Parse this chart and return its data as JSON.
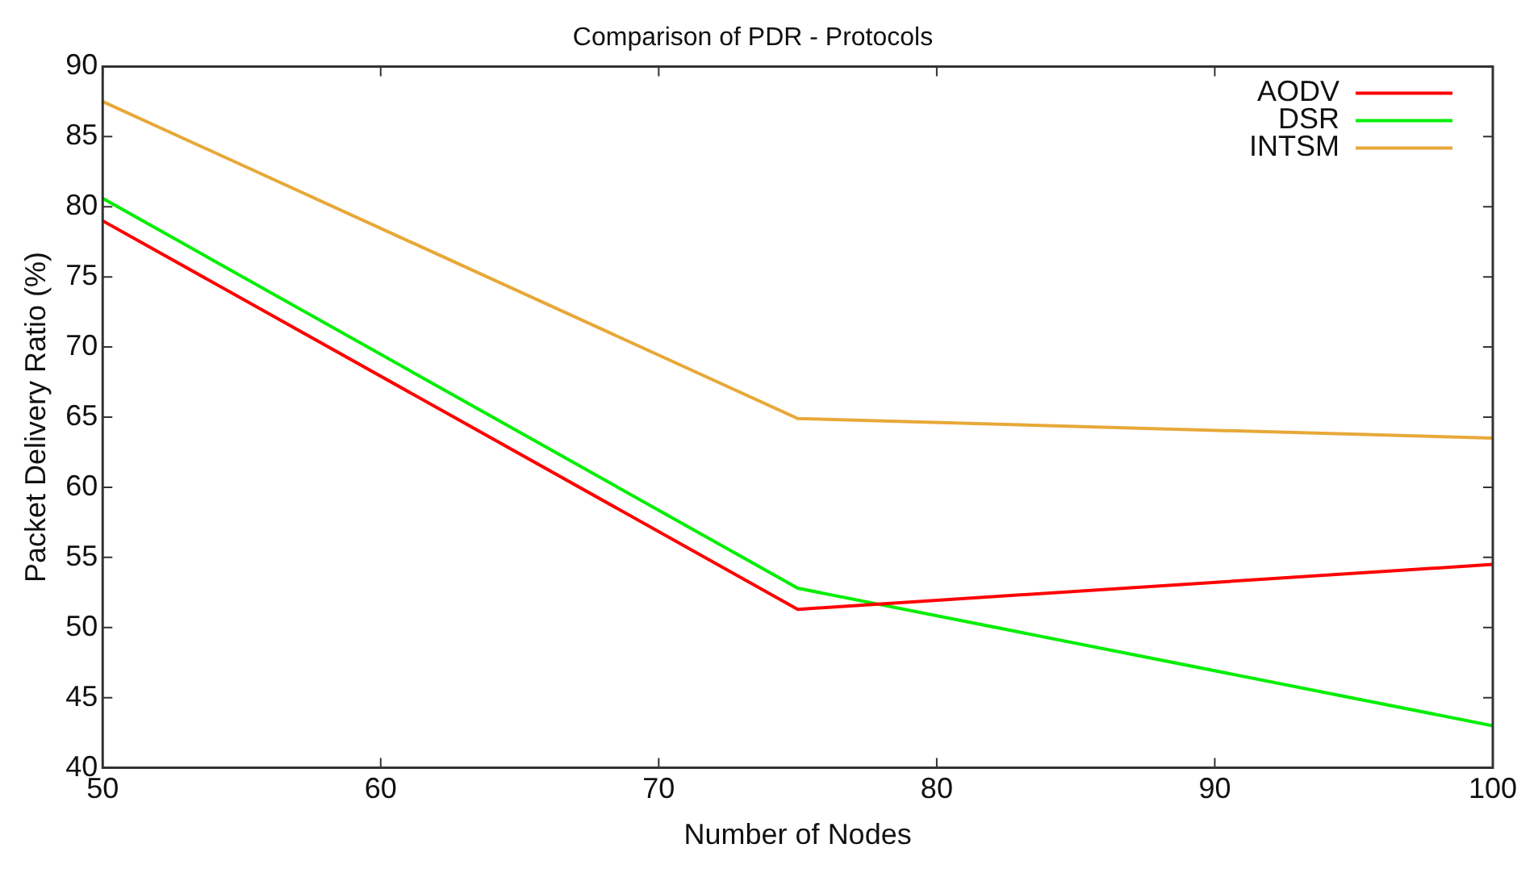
{
  "chart_data": {
    "type": "line",
    "title": "Comparison of PDR - Protocols",
    "xlabel": "Number of Nodes",
    "ylabel": "Packet Delivery Ratio (%)",
    "x": [
      50,
      75,
      100
    ],
    "series": [
      {
        "name": "AODV",
        "color": "#ff0000",
        "values": [
          79.0,
          51.3,
          54.5
        ]
      },
      {
        "name": "DSR",
        "color": "#00ee00",
        "values": [
          80.6,
          52.8,
          43.0
        ]
      },
      {
        "name": "INTSM",
        "color": "#e8a838",
        "values": [
          87.5,
          64.9,
          63.5
        ]
      }
    ],
    "xlim": [
      50,
      100
    ],
    "xticks": [
      50,
      60,
      70,
      80,
      90,
      100
    ],
    "ylim": [
      40,
      90
    ],
    "yticks": [
      40,
      45,
      50,
      55,
      60,
      65,
      70,
      75,
      80,
      85,
      90
    ],
    "grid": false,
    "legend": "top right",
    "marker": "none",
    "line_style": "solid"
  }
}
